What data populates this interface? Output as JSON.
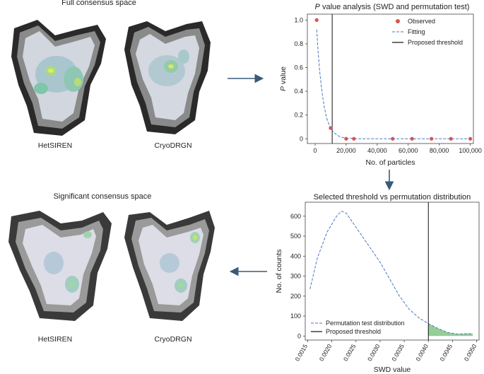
{
  "panels": {
    "top_left_title": "Full consensus space",
    "bottom_left_title": "Significant consensus space",
    "method_labels": [
      "HetSIREN",
      "CryoDRGN"
    ]
  },
  "colors": {
    "observed": "#d9534f",
    "fitting": "#4a78c4",
    "threshold": "#111111",
    "area_fill": "#6fbf73",
    "arrow": "#3b5a7a"
  },
  "chart_data": [
    {
      "type": "scatter",
      "title_italic": "P",
      "title_rest": " value analysis (SWD and permutation test)",
      "xlabel": "No. of particles",
      "ylabel_italic": "P",
      "ylabel_rest": " value",
      "xlim": [
        -5000,
        102000
      ],
      "ylim": [
        -0.04,
        1.05
      ],
      "xticks": [
        0,
        20000,
        40000,
        60000,
        80000,
        100000
      ],
      "xtick_labels": [
        "0",
        "20,000",
        "40,000",
        "60,000",
        "80,000",
        "100,000"
      ],
      "yticks": [
        0,
        0.2,
        0.4,
        0.6,
        0.8,
        1.0
      ],
      "ytick_labels": [
        "0",
        "0.2",
        "0.4",
        "0.6",
        "0.8",
        "1.0"
      ],
      "observed": {
        "name": "Observed",
        "x": [
          1000,
          10000,
          20000,
          25000,
          50000,
          62500,
          75000,
          87500,
          100000
        ],
        "y": [
          1.0,
          0.09,
          0.0,
          0.0,
          0.0,
          0.0,
          0.0,
          0.0,
          0.0
        ]
      },
      "fitting": {
        "name": "Fitting",
        "x": [
          1000,
          2000,
          3000,
          4000,
          5000,
          6000,
          7000,
          8000,
          9000,
          10000,
          12000,
          14000,
          16000,
          18000,
          20000,
          30000,
          40000,
          60000,
          80000,
          100000
        ],
        "y": [
          0.92,
          0.72,
          0.56,
          0.44,
          0.34,
          0.26,
          0.2,
          0.15,
          0.12,
          0.09,
          0.055,
          0.032,
          0.018,
          0.01,
          0.005,
          0.0,
          0.0,
          0.0,
          0.0,
          0.0
        ]
      },
      "threshold": {
        "name": "Proposed threshold",
        "x": 11000
      },
      "legend_position": "top-right"
    },
    {
      "type": "line",
      "title": "Selected threshold vs permutation distribution",
      "xlabel": "SWD value",
      "ylabel": "No. of counts",
      "xlim": [
        0.00145,
        0.00505
      ],
      "ylim": [
        -20,
        670
      ],
      "xticks": [
        0.0015,
        0.002,
        0.0025,
        0.003,
        0.0035,
        0.004,
        0.0045,
        0.005
      ],
      "xtick_labels": [
        "0.0015",
        "0.0020",
        "0.0025",
        "0.0030",
        "0.0035",
        "0.0040",
        "0.0045",
        "0.0050"
      ],
      "yticks": [
        0,
        100,
        200,
        300,
        400,
        500,
        600
      ],
      "ytick_labels": [
        "0",
        "100",
        "200",
        "300",
        "400",
        "500",
        "600"
      ],
      "distribution": {
        "name": "Permutation test distribution",
        "x": [
          0.00155,
          0.0017,
          0.0019,
          0.0021,
          0.0022,
          0.0023,
          0.0024,
          0.0026,
          0.0028,
          0.003,
          0.0032,
          0.0034,
          0.0036,
          0.0038,
          0.004,
          0.0042,
          0.0044,
          0.0046,
          0.0048,
          0.00492
        ],
        "y": [
          235,
          390,
          520,
          600,
          625,
          615,
          580,
          510,
          440,
          370,
          285,
          200,
          135,
          92,
          62,
          38,
          18,
          10,
          12,
          12
        ]
      },
      "threshold": {
        "name": "Proposed threshold",
        "x": 0.004
      },
      "legend_position": "bottom-left"
    }
  ]
}
